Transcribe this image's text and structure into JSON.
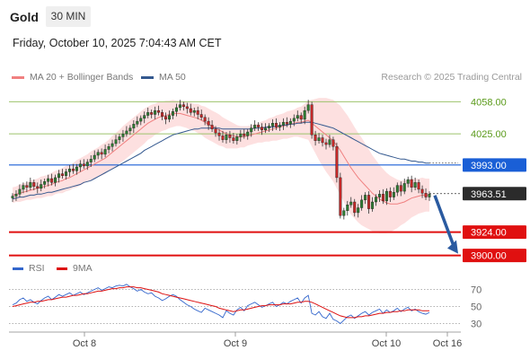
{
  "header": {
    "title": "Gold",
    "timeframe": "30 MIN"
  },
  "datetime": "Friday, October 10, 2025 7:04:43 AM CET",
  "legend": {
    "ma20_label": "MA 20 + Bollinger Bands",
    "ma50_label": "MA 50",
    "credit": "Research © 2025 Trading Central",
    "rsi_label": "RSI",
    "rsi_ma_label": "9MA"
  },
  "colors": {
    "ma20": "#f08080",
    "ma50": "#34598f",
    "bollinger_fill": "#fde0e0",
    "candle_up": "#2e7d32",
    "candle_down": "#c62828",
    "resistance_line": "#9dc36b",
    "pivot_line": "#1a5fd6",
    "support_line": "#e01010",
    "rsi_line": "#3366cc",
    "rsi_ma_line": "#dd1111",
    "arrow": "#2a5aa0"
  },
  "chart_data": {
    "type": "candlestick",
    "instrument": "Gold",
    "timeframe": "30 MIN",
    "y_range": [
      3895,
      4075
    ],
    "x_tick_labels": [
      "Oct 8",
      "Oct 9",
      "Oct 10",
      "Oct 16"
    ],
    "price_levels": [
      {
        "label": "4058.00",
        "value": 4058,
        "kind": "resistance"
      },
      {
        "label": "4025.00",
        "value": 4025,
        "kind": "resistance"
      },
      {
        "label": "3993.00",
        "value": 3993,
        "kind": "pivot"
      },
      {
        "label": "3963.51",
        "value": 3963.51,
        "kind": "last_price"
      },
      {
        "label": "3924.00",
        "value": 3924,
        "kind": "support"
      },
      {
        "label": "3900.00",
        "value": 3900,
        "kind": "support"
      }
    ],
    "forecast_arrow": {
      "from": 3963.51,
      "to": 3900
    },
    "close_series": [
      3961,
      3963,
      3968,
      3972,
      3970,
      3975,
      3971,
      3969,
      3973,
      3976,
      3979,
      3975,
      3980,
      3984,
      3982,
      3986,
      3989,
      3987,
      3991,
      3994,
      3992,
      3996,
      3999,
      4003,
      4006,
      4004,
      4009,
      4012,
      4015,
      4019,
      4022,
      4025,
      4028,
      4031,
      4035,
      4038,
      4041,
      4044,
      4047,
      4045,
      4049,
      4047,
      4043,
      4040,
      4044,
      4048,
      4052,
      4055,
      4053,
      4051,
      4047,
      4049,
      4045,
      4042,
      4038,
      4034,
      4030,
      4026,
      4023,
      4019,
      4024,
      4021,
      4018,
      4022,
      4025,
      4023,
      4027,
      4031,
      4034,
      4032,
      4029,
      4031,
      4033,
      4036,
      4032,
      4034,
      4037,
      4035,
      4038,
      4041,
      4044,
      4040,
      4049,
      4055,
      4024,
      4018,
      4021,
      4016,
      4014,
      4019,
      4012,
      3980,
      3941,
      3946,
      3952,
      3955,
      3944,
      3949,
      3957,
      3962,
      3948,
      3955,
      3960,
      3963,
      3956,
      3966,
      3960,
      3965,
      3972,
      3966,
      3974,
      3978,
      3970,
      3975,
      3968,
      3964,
      3960,
      3963
    ],
    "ma20_series": [
      3962,
      3963,
      3964,
      3965,
      3966,
      3967,
      3968,
      3969,
      3970,
      3971,
      3972,
      3973,
      3975,
      3976,
      3977,
      3979,
      3980,
      3982,
      3984,
      3986,
      3988,
      3990,
      3992,
      3994,
      3996,
      3998,
      4000,
      4003,
      4006,
      4009,
      4012,
      4015,
      4018,
      4021,
      4024,
      4027,
      4030,
      4033,
      4036,
      4038,
      4040,
      4042,
      4043,
      4044,
      4045,
      4046,
      4046,
      4046,
      4045,
      4044,
      4043,
      4042,
      4041,
      4039,
      4037,
      4035,
      4033,
      4031,
      4029,
      4027,
      4025,
      4024,
      4023,
      4022,
      4022,
      4022,
      4023,
      4024,
      4025,
      4026,
      4027,
      4028,
      4029,
      4030,
      4031,
      4032,
      4033,
      4034,
      4035,
      4036,
      4037,
      4037,
      4038,
      4039,
      4036,
      4033,
      4030,
      4027,
      4024,
      4021,
      4018,
      4013,
      4008,
      4002,
      3996,
      3990,
      3985,
      3980,
      3976,
      3972,
      3968,
      3964,
      3961,
      3958,
      3956,
      3954,
      3953,
      3953,
      3953,
      3954,
      3955,
      3957,
      3959,
      3960,
      3961,
      3962,
      3962,
      3962
    ],
    "ma50_series": [
      3958,
      3959,
      3960,
      3960,
      3961,
      3962,
      3962,
      3963,
      3963,
      3964,
      3965,
      3965,
      3966,
      3967,
      3968,
      3969,
      3970,
      3971,
      3972,
      3973,
      3975,
      3976,
      3977,
      3979,
      3981,
      3983,
      3985,
      3987,
      3989,
      3991,
      3993,
      3995,
      3997,
      3999,
      4001,
      4003,
      4005,
      4008,
      4010,
      4012,
      4014,
      4016,
      4018,
      4020,
      4022,
      4024,
      4025,
      4026,
      4027,
      4028,
      4029,
      4030,
      4030,
      4031,
      4031,
      4031,
      4031,
      4031,
      4031,
      4030,
      4030,
      4030,
      4030,
      4030,
      4030,
      4030,
      4030,
      4030,
      4031,
      4031,
      4031,
      4032,
      4032,
      4032,
      4033,
      4033,
      4034,
      4034,
      4035,
      4035,
      4036,
      4036,
      4037,
      4037,
      4037,
      4036,
      4035,
      4034,
      4033,
      4032,
      4031,
      4029,
      4027,
      4025,
      4023,
      4021,
      4019,
      4017,
      4015,
      4013,
      4011,
      4009,
      4007,
      4005,
      4004,
      4003,
      4002,
      4001,
      4000,
      3999,
      3999,
      3998,
      3997,
      3997,
      3996,
      3996,
      3995,
      3995
    ],
    "band_width_series": [
      8,
      8,
      9,
      9,
      9,
      10,
      10,
      10,
      11,
      11,
      11,
      12,
      12,
      12,
      13,
      13,
      13,
      13,
      14,
      14,
      14,
      14,
      15,
      15,
      15,
      16,
      16,
      16,
      17,
      17,
      17,
      18,
      18,
      18,
      18,
      18,
      18,
      18,
      17,
      17,
      16,
      16,
      15,
      15,
      14,
      14,
      13,
      13,
      13,
      13,
      14,
      14,
      15,
      15,
      16,
      16,
      16,
      16,
      16,
      15,
      15,
      14,
      13,
      12,
      11,
      11,
      10,
      10,
      10,
      10,
      11,
      11,
      12,
      12,
      13,
      13,
      13,
      14,
      14,
      14,
      15,
      16,
      18,
      20,
      24,
      28,
      32,
      35,
      38,
      40,
      42,
      44,
      46,
      47,
      48,
      48,
      47,
      46,
      45,
      43,
      41,
      39,
      37,
      35,
      33,
      31,
      29,
      27,
      25,
      23,
      22,
      21,
      20,
      19,
      18,
      18,
      17,
      17
    ],
    "rsi": {
      "y_range": [
        20,
        80
      ],
      "levels": [
        70,
        50,
        30
      ],
      "values": [
        52,
        54,
        58,
        60,
        56,
        58,
        55,
        53,
        57,
        60,
        62,
        58,
        61,
        64,
        62,
        64,
        66,
        63,
        65,
        67,
        64,
        66,
        68,
        70,
        72,
        69,
        71,
        73,
        72,
        74,
        75,
        74,
        76,
        73,
        71,
        68,
        70,
        67,
        65,
        66,
        62,
        60,
        57,
        59,
        62,
        64,
        62,
        58,
        55,
        52,
        50,
        47,
        45,
        43,
        48,
        46,
        44,
        42,
        40,
        37,
        45,
        42,
        40,
        46,
        49,
        45,
        51,
        53,
        55,
        52,
        49,
        51,
        53,
        55,
        50,
        52,
        55,
        53,
        56,
        58,
        60,
        54,
        60,
        63,
        42,
        40,
        44,
        38,
        36,
        42,
        35,
        33,
        30,
        34,
        38,
        40,
        36,
        39,
        42,
        44,
        40,
        43,
        45,
        47,
        42,
        46,
        43,
        45,
        48,
        44,
        47,
        49,
        45,
        47,
        44,
        42,
        41,
        43
      ],
      "ma9": [
        50,
        51,
        52,
        53,
        54,
        55,
        55,
        56,
        56,
        57,
        58,
        58,
        59,
        60,
        61,
        61,
        62,
        63,
        63,
        64,
        65,
        65,
        66,
        67,
        68,
        68,
        69,
        70,
        71,
        71,
        72,
        72,
        73,
        73,
        73,
        72,
        72,
        71,
        70,
        69,
        68,
        67,
        65,
        64,
        63,
        62,
        61,
        60,
        59,
        58,
        57,
        56,
        55,
        54,
        53,
        52,
        51,
        50,
        48,
        47,
        46,
        45,
        44,
        45,
        46,
        46,
        47,
        48,
        49,
        50,
        51,
        51,
        52,
        52,
        52,
        52,
        53,
        53,
        53,
        54,
        55,
        55,
        56,
        56,
        55,
        53,
        51,
        49,
        47,
        45,
        43,
        41,
        39,
        38,
        37,
        37,
        37,
        38,
        38,
        39,
        39,
        40,
        41,
        42,
        42,
        43,
        43,
        44,
        44,
        45,
        45,
        46,
        46,
        46,
        46,
        45,
        45,
        45
      ]
    }
  }
}
